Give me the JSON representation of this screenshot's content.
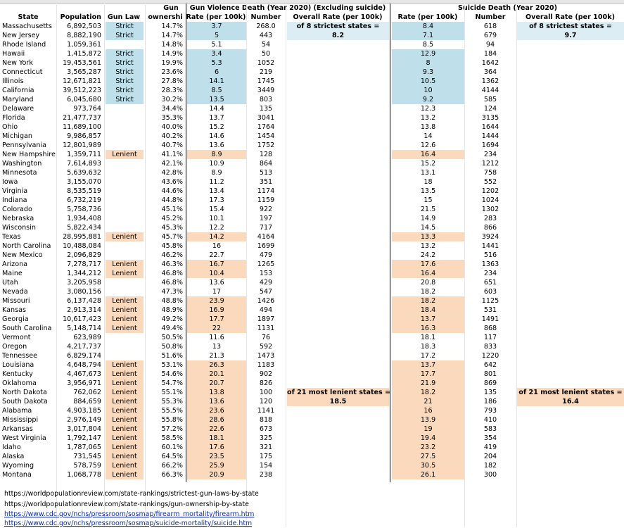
{
  "headers": {
    "state": "State",
    "population": "Population",
    "gun_law": "Gun Law",
    "ownership_top": "Gun",
    "ownership": "ownershi",
    "gv_title": "Gun Violence Death (Year 2020) (Excluding suicide)",
    "gv_rate": "Rate (per 100k)",
    "gv_number": "Number",
    "gv_overall": "Overall Rate (per 100k)",
    "sd_title": "Suicide Death (Year 2020)",
    "sd_rate": "Rate (per 100k)",
    "sd_number": "Number",
    "sd_overall": "Overall Rate (per 100k)"
  },
  "summary": {
    "gv_strict_label": "of 8 strictest states =",
    "gv_strict_value": "8.2",
    "gv_lenient_label": "of 21 most lenient states =",
    "gv_lenient_value": "18.5",
    "sd_strict_label": "of 8 strictest states =",
    "sd_strict_value": "9.7",
    "sd_lenient_label": "of 21 most lenient states =",
    "sd_lenient_value": "16.4"
  },
  "rows": [
    {
      "state": "Massachusetts",
      "population": "6,892,503",
      "law": "Strict",
      "own": "14.7%",
      "gv_rate": "3.7",
      "gv_num": "268.0",
      "sd_rate": "8.4",
      "sd_num": "618"
    },
    {
      "state": "New Jersey",
      "population": "8,882,190",
      "law": "Strict",
      "own": "14.7%",
      "gv_rate": "5",
      "gv_num": "443",
      "sd_rate": "7.1",
      "sd_num": "679"
    },
    {
      "state": "Rhode Island",
      "population": "1,059,361",
      "law": "",
      "own": "14.8%",
      "gv_rate": "5.1",
      "gv_num": "54",
      "sd_rate": "8.5",
      "sd_num": "94"
    },
    {
      "state": "Hawaii",
      "population": "1,415,872",
      "law": "Strict",
      "own": "14.9%",
      "gv_rate": "3.4",
      "gv_num": "50",
      "sd_rate": "12.9",
      "sd_num": "184"
    },
    {
      "state": "New York",
      "population": "19,453,561",
      "law": "Strict",
      "own": "19.9%",
      "gv_rate": "5.3",
      "gv_num": "1052",
      "sd_rate": "8",
      "sd_num": "1642"
    },
    {
      "state": "Connecticut",
      "population": "3,565,287",
      "law": "Strict",
      "own": "23.6%",
      "gv_rate": "6",
      "gv_num": "219",
      "sd_rate": "9.3",
      "sd_num": "364"
    },
    {
      "state": "Illinois",
      "population": "12,671,821",
      "law": "Strict",
      "own": "27.8%",
      "gv_rate": "14.1",
      "gv_num": "1745",
      "sd_rate": "10.5",
      "sd_num": "1362"
    },
    {
      "state": "California",
      "population": "39,512,223",
      "law": "Strict",
      "own": "28.3%",
      "gv_rate": "8.5",
      "gv_num": "3449",
      "sd_rate": "10",
      "sd_num": "4144"
    },
    {
      "state": "Maryland",
      "population": "6,045,680",
      "law": "Strict",
      "own": "30.2%",
      "gv_rate": "13.5",
      "gv_num": "803",
      "sd_rate": "9.2",
      "sd_num": "585"
    },
    {
      "state": "Delaware",
      "population": "973,764",
      "law": "",
      "own": "34.4%",
      "gv_rate": "14.4",
      "gv_num": "135",
      "sd_rate": "12.3",
      "sd_num": "124"
    },
    {
      "state": "Florida",
      "population": "21,477,737",
      "law": "",
      "own": "35.3%",
      "gv_rate": "13.7",
      "gv_num": "3041",
      "sd_rate": "13.2",
      "sd_num": "3135"
    },
    {
      "state": "Ohio",
      "population": "11,689,100",
      "law": "",
      "own": "40.0%",
      "gv_rate": "15.2",
      "gv_num": "1764",
      "sd_rate": "13.8",
      "sd_num": "1644"
    },
    {
      "state": "Michigan",
      "population": "9,986,857",
      "law": "",
      "own": "40.2%",
      "gv_rate": "14.6",
      "gv_num": "1454",
      "sd_rate": "14",
      "sd_num": "1444"
    },
    {
      "state": "Pennsylvania",
      "population": "12,801,989",
      "law": "",
      "own": "40.7%",
      "gv_rate": "13.6",
      "gv_num": "1752",
      "sd_rate": "12.6",
      "sd_num": "1694"
    },
    {
      "state": "New Hampshire",
      "population": "1,359,711",
      "law": "Lenient",
      "own": "41.1%",
      "gv_rate": "8.9",
      "gv_num": "128",
      "sd_rate": "16.4",
      "sd_num": "234"
    },
    {
      "state": "Washington",
      "population": "7,614,893",
      "law": "",
      "own": "42.1%",
      "gv_rate": "10.9",
      "gv_num": "864",
      "sd_rate": "15.2",
      "sd_num": "1212"
    },
    {
      "state": "Minnesota",
      "population": "5,639,632",
      "law": "",
      "own": "42.8%",
      "gv_rate": "8.9",
      "gv_num": "513",
      "sd_rate": "13.1",
      "sd_num": "758"
    },
    {
      "state": "Iowa",
      "population": "3,155,070",
      "law": "",
      "own": "43.6%",
      "gv_rate": "11.2",
      "gv_num": "351",
      "sd_rate": "18",
      "sd_num": "552"
    },
    {
      "state": "Virginia",
      "population": "8,535,519",
      "law": "",
      "own": "44.6%",
      "gv_rate": "13.4",
      "gv_num": "1174",
      "sd_rate": "13.5",
      "sd_num": "1202"
    },
    {
      "state": "Indiana",
      "population": "6,732,219",
      "law": "",
      "own": "44.8%",
      "gv_rate": "17.3",
      "gv_num": "1159",
      "sd_rate": "15",
      "sd_num": "1024"
    },
    {
      "state": "Colorado",
      "population": "5,758,736",
      "law": "",
      "own": "45.1%",
      "gv_rate": "15.4",
      "gv_num": "922",
      "sd_rate": "21.5",
      "sd_num": "1302"
    },
    {
      "state": "Nebraska",
      "population": "1,934,408",
      "law": "",
      "own": "45.2%",
      "gv_rate": "10.1",
      "gv_num": "197",
      "sd_rate": "14.9",
      "sd_num": "283"
    },
    {
      "state": "Wisconsin",
      "population": "5,822,434",
      "law": "",
      "own": "45.3%",
      "gv_rate": "12.2",
      "gv_num": "717",
      "sd_rate": "14.5",
      "sd_num": "866"
    },
    {
      "state": "Texas",
      "population": "28,995,881",
      "law": "Lenient",
      "own": "45.7%",
      "gv_rate": "14.2",
      "gv_num": "4164",
      "sd_rate": "13.3",
      "sd_num": "3924"
    },
    {
      "state": "North Carolina",
      "population": "10,488,084",
      "law": "",
      "own": "45.8%",
      "gv_rate": "16",
      "gv_num": "1699",
      "sd_rate": "13.2",
      "sd_num": "1441"
    },
    {
      "state": "New Mexico",
      "population": "2,096,829",
      "law": "",
      "own": "46.2%",
      "gv_rate": "22.7",
      "gv_num": "479",
      "sd_rate": "24.2",
      "sd_num": "516"
    },
    {
      "state": "Arizona",
      "population": "7,278,717",
      "law": "Lenient",
      "own": "46.3%",
      "gv_rate": "16.7",
      "gv_num": "1265",
      "sd_rate": "17.6",
      "sd_num": "1363"
    },
    {
      "state": "Maine",
      "population": "1,344,212",
      "law": "Lenient",
      "own": "46.8%",
      "gv_rate": "10.4",
      "gv_num": "153",
      "sd_rate": "16.4",
      "sd_num": "234"
    },
    {
      "state": "Utah",
      "population": "3,205,958",
      "law": "",
      "own": "46.8%",
      "gv_rate": "13.6",
      "gv_num": "429",
      "sd_rate": "20.8",
      "sd_num": "651"
    },
    {
      "state": "Nevada",
      "population": "3,080,156",
      "law": "",
      "own": "47.3%",
      "gv_rate": "17",
      "gv_num": "547",
      "sd_rate": "18.2",
      "sd_num": "603"
    },
    {
      "state": "Missouri",
      "population": "6,137,428",
      "law": "Lenient",
      "own": "48.8%",
      "gv_rate": "23.9",
      "gv_num": "1426",
      "sd_rate": "18.2",
      "sd_num": "1125"
    },
    {
      "state": "Kansas",
      "population": "2,913,314",
      "law": "Lenient",
      "own": "48.9%",
      "gv_rate": "16.9",
      "gv_num": "494",
      "sd_rate": "18.4",
      "sd_num": "531"
    },
    {
      "state": "Georgia",
      "population": "10,617,423",
      "law": "Lenient",
      "own": "49.2%",
      "gv_rate": "17.7",
      "gv_num": "1897",
      "sd_rate": "13.7",
      "sd_num": "1491"
    },
    {
      "state": "South Carolina",
      "population": "5,148,714",
      "law": "Lenient",
      "own": "49.4%",
      "gv_rate": "22",
      "gv_num": "1131",
      "sd_rate": "16.3",
      "sd_num": "868"
    },
    {
      "state": "Vermont",
      "population": "623,989",
      "law": "",
      "own": "50.5%",
      "gv_rate": "11.6",
      "gv_num": "76",
      "sd_rate": "18.1",
      "sd_num": "117"
    },
    {
      "state": "Oregon",
      "population": "4,217,737",
      "law": "",
      "own": "50.8%",
      "gv_rate": "13",
      "gv_num": "592",
      "sd_rate": "18.3",
      "sd_num": "833"
    },
    {
      "state": "Tennessee",
      "population": "6,829,174",
      "law": "",
      "own": "51.6%",
      "gv_rate": "21.3",
      "gv_num": "1473",
      "sd_rate": "17.2",
      "sd_num": "1220"
    },
    {
      "state": "Louisiana",
      "population": "4,648,794",
      "law": "Lenient",
      "own": "53.1%",
      "gv_rate": "26.3",
      "gv_num": "1183",
      "sd_rate": "13.7",
      "sd_num": "642"
    },
    {
      "state": "Kentucky",
      "population": "4,467,673",
      "law": "Lenient",
      "own": "54.6%",
      "gv_rate": "20.1",
      "gv_num": "902",
      "sd_rate": "17.7",
      "sd_num": "801"
    },
    {
      "state": "Oklahoma",
      "population": "3,956,971",
      "law": "Lenient",
      "own": "54.7%",
      "gv_rate": "20.7",
      "gv_num": "826",
      "sd_rate": "21.9",
      "sd_num": "869"
    },
    {
      "state": "North Dakota",
      "population": "762,062",
      "law": "Lenient",
      "own": "55.1%",
      "gv_rate": "13.8",
      "gv_num": "100",
      "sd_rate": "18.2",
      "sd_num": "135"
    },
    {
      "state": "South Dakota",
      "population": "884,659",
      "law": "Lenient",
      "own": "55.3%",
      "gv_rate": "13.6",
      "gv_num": "120",
      "sd_rate": "21",
      "sd_num": "186"
    },
    {
      "state": "Alabama",
      "population": "4,903,185",
      "law": "Lenient",
      "own": "55.5%",
      "gv_rate": "23.6",
      "gv_num": "1141",
      "sd_rate": "16",
      "sd_num": "793"
    },
    {
      "state": "Mississippi",
      "population": "2,976,149",
      "law": "Lenient",
      "own": "55.8%",
      "gv_rate": "28.6",
      "gv_num": "818",
      "sd_rate": "13.9",
      "sd_num": "410"
    },
    {
      "state": "Arkansas",
      "population": "3,017,804",
      "law": "Lenient",
      "own": "57.2%",
      "gv_rate": "22.6",
      "gv_num": "673",
      "sd_rate": "19",
      "sd_num": "583"
    },
    {
      "state": "West Virginia",
      "population": "1,792,147",
      "law": "Lenient",
      "own": "58.5%",
      "gv_rate": "18.1",
      "gv_num": "325",
      "sd_rate": "19.4",
      "sd_num": "354"
    },
    {
      "state": "Idaho",
      "population": "1,787,065",
      "law": "Lenient",
      "own": "60.1%",
      "gv_rate": "17.6",
      "gv_num": "321",
      "sd_rate": "23.2",
      "sd_num": "419"
    },
    {
      "state": "Alaska",
      "population": "731,545",
      "law": "Lenient",
      "own": "64.5%",
      "gv_rate": "23.5",
      "gv_num": "175",
      "sd_rate": "27.5",
      "sd_num": "204"
    },
    {
      "state": "Wyoming",
      "population": "578,759",
      "law": "Lenient",
      "own": "66.2%",
      "gv_rate": "25.9",
      "gv_num": "154",
      "sd_rate": "30.5",
      "sd_num": "182"
    },
    {
      "state": "Montana",
      "population": "1,068,778",
      "law": "Lenient",
      "own": "66.3%",
      "gv_rate": "20.9",
      "gv_num": "238",
      "sd_rate": "26.1",
      "sd_num": "300"
    }
  ],
  "sources": [
    "https://worldpopulationreview.com/state-rankings/strictest-gun-laws-by-state",
    "https://worldpopulationreview.com/state-rankings/gun-ownership-by-state",
    "https://www.cdc.gov/nchs/pressroom/sosmap/firearm_mortality/firearm.htm",
    "https://www.cdc.gov/nchs/pressroom/sosmap/suicide-mortality/suicide.htm"
  ],
  "colors": {
    "strict": "#bfe0ea",
    "lenient": "#fbd9bc",
    "summary_strict": "#dcedf3"
  }
}
